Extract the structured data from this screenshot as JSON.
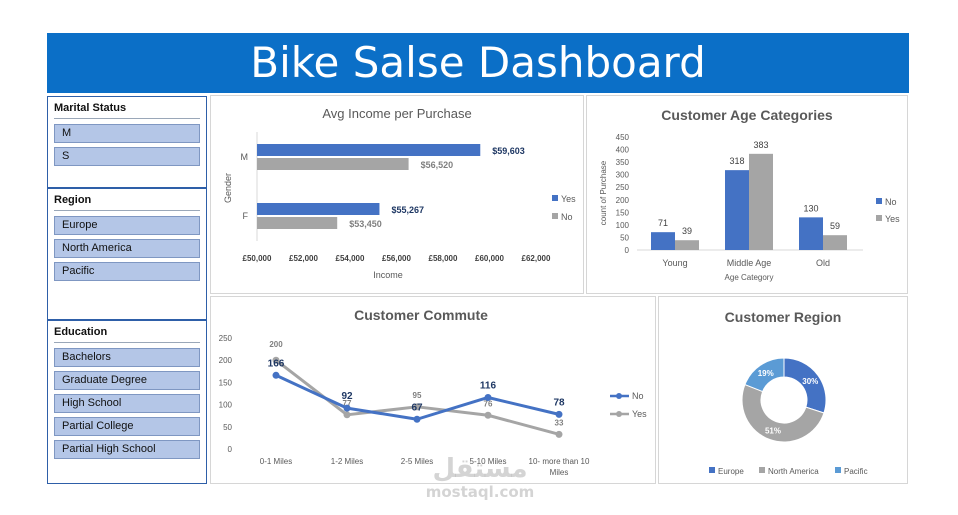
{
  "header": {
    "title": "Bike Salse Dashboard"
  },
  "slicers": {
    "marital": {
      "title": "Marital Status",
      "items": [
        "M",
        "S"
      ]
    },
    "region": {
      "title": "Region",
      "items": [
        "Europe",
        "North America",
        "Pacific"
      ]
    },
    "education": {
      "title": "Education",
      "items": [
        "Bachelors",
        "Graduate Degree",
        "High School",
        "Partial College",
        "Partial High School"
      ]
    }
  },
  "watermark": {
    "arabic": "مستقل",
    "latin": "mostaql.com"
  },
  "colors": {
    "banner": "#0b6fc7",
    "blue": "#4472c4",
    "gray": "#a5a5a5",
    "slicer_item": "#b4c6e7"
  },
  "chart_data": [
    {
      "type": "bar",
      "orientation": "horizontal",
      "title": "Avg Income per Purchase",
      "xlabel": "Income",
      "ylabel": "Gender",
      "categories": [
        "M",
        "F"
      ],
      "series": [
        {
          "name": "Yes",
          "values": [
            59603,
            55267
          ],
          "labels": [
            "$59,603",
            "$55,267"
          ]
        },
        {
          "name": "No",
          "values": [
            56520,
            53450
          ],
          "labels": [
            "$56,520",
            "$53,450"
          ]
        }
      ],
      "xlim": [
        50000,
        62000
      ],
      "ticks": [
        "£50,000",
        "£52,000",
        "£54,000",
        "£56,000",
        "£58,000",
        "£60,000",
        "£62,000"
      ],
      "legend": "right"
    },
    {
      "type": "bar",
      "title": "Customer Age Categories",
      "xlabel": "Age Category",
      "ylabel": "count of Purchase",
      "categories": [
        "Young",
        "Middle Age",
        "Old"
      ],
      "series": [
        {
          "name": "No",
          "values": [
            71,
            318,
            130
          ]
        },
        {
          "name": "Yes",
          "values": [
            39,
            383,
            59
          ]
        }
      ],
      "ylim": [
        0,
        450
      ],
      "ticks": [
        "0",
        "50",
        "100",
        "150",
        "200",
        "250",
        "300",
        "350",
        "400",
        "450"
      ],
      "legend": "right"
    },
    {
      "type": "line",
      "title": "Customer Commute",
      "categories": [
        "0-1 Miles",
        "1-2 Miles",
        "2-5 Miles",
        "5-10 Miles",
        "10- more than 10 Miles"
      ],
      "series": [
        {
          "name": "No",
          "values": [
            166,
            92,
            67,
            116,
            78
          ]
        },
        {
          "name": "Yes",
          "values": [
            200,
            77,
            95,
            76,
            33
          ]
        }
      ],
      "ylim": [
        0,
        250
      ],
      "ticks": [
        "0",
        "50",
        "100",
        "150",
        "200",
        "250"
      ],
      "legend": "right"
    },
    {
      "type": "pie",
      "variant": "donut",
      "title": "Customer Region",
      "categories": [
        "Europe",
        "North America",
        "Pacific"
      ],
      "values": [
        30,
        51,
        19
      ],
      "labels": [
        "30%",
        "51%",
        "19%"
      ],
      "legend": "bottom"
    }
  ]
}
